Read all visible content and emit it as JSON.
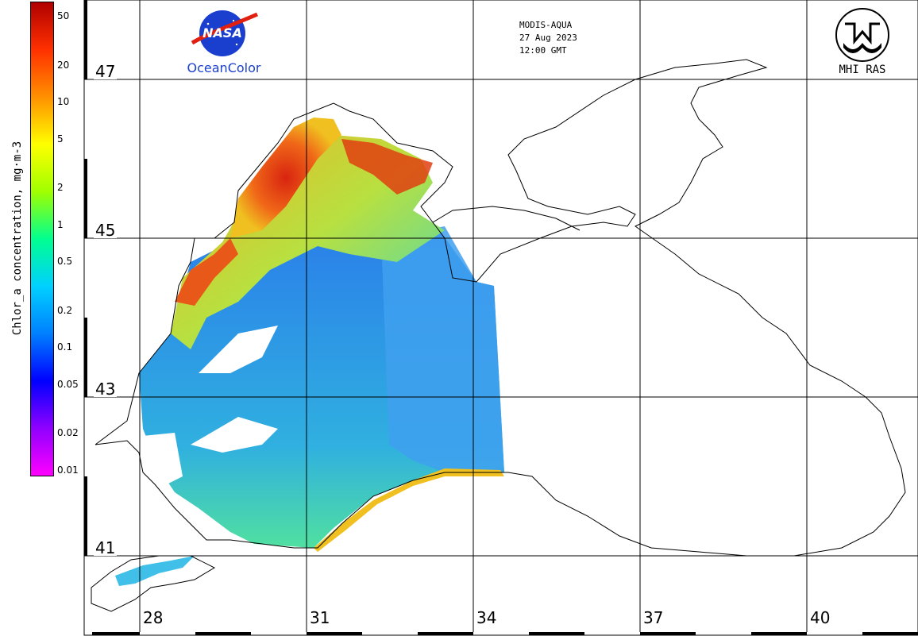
{
  "colorbar": {
    "title": "Chlor_a concentration, mg·m-3",
    "ticks": [
      "50",
      "20",
      "10",
      "5",
      "2",
      "1",
      "0.5",
      "0.2",
      "0.1",
      "0.05",
      "0.02",
      "0.01"
    ],
    "tick_values": [
      50,
      20,
      10,
      5,
      2,
      1,
      0.5,
      0.2,
      0.1,
      0.05,
      0.02,
      0.01
    ],
    "range": [
      0.01,
      60
    ],
    "scale": "log",
    "colors": [
      "#ff00ff",
      "#9000ff",
      "#0000ff",
      "#0080ff",
      "#00d0ff",
      "#00ff90",
      "#a0ff00",
      "#ffff00",
      "#ff9000",
      "#ff3000",
      "#b00000"
    ]
  },
  "header": {
    "sensor": "MODIS-AQUA",
    "date": "27 Aug 2023",
    "time": "12:00 GMT"
  },
  "logos": {
    "nasa_text": "NASA",
    "oceancolor_text": "OceanColor",
    "mhi_text": "MHI RAS"
  },
  "grid": {
    "latitudes": [
      "47",
      "45",
      "43",
      "41"
    ],
    "longitudes": [
      "28",
      "31",
      "34",
      "37",
      "40"
    ]
  },
  "map_colors": {
    "low_chl": "#2a7bea",
    "mid_chl": "#3fd6c8",
    "high_chl": "#f08a18",
    "very_high_chl": "#d82410",
    "coast": "#000000",
    "grid": "#000000"
  }
}
